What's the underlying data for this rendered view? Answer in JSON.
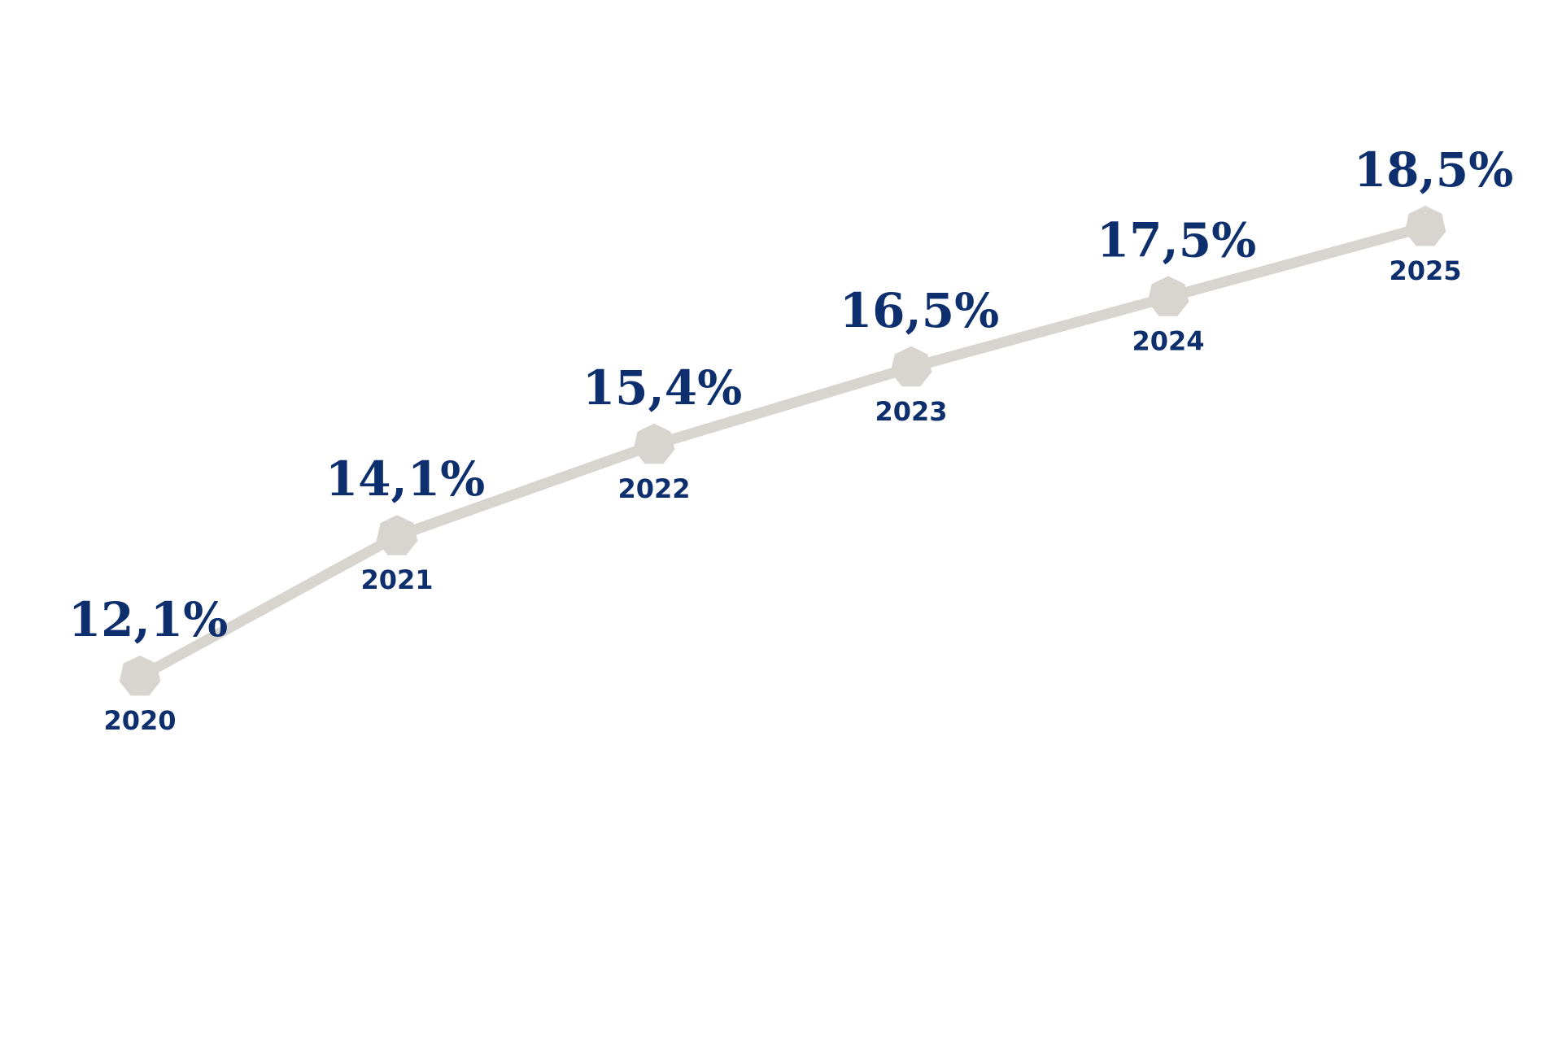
{
  "chart_data": {
    "type": "line",
    "title": "",
    "xlabel": "",
    "ylabel": "",
    "categories": [
      "2020",
      "2021",
      "2022",
      "2023",
      "2024",
      "2025"
    ],
    "values": [
      12.1,
      14.1,
      15.4,
      16.5,
      17.5,
      18.5
    ],
    "value_labels": [
      "12,1%",
      "14,1%",
      "15,4%",
      "16,5%",
      "17,5%",
      "18,5%"
    ],
    "ylim": [
      12.1,
      18.5
    ],
    "grid": false,
    "legend": "none",
    "line_color": "#d8d4cf",
    "marker_color": "#d8d4cf",
    "text_color": "#0e2f6e"
  }
}
